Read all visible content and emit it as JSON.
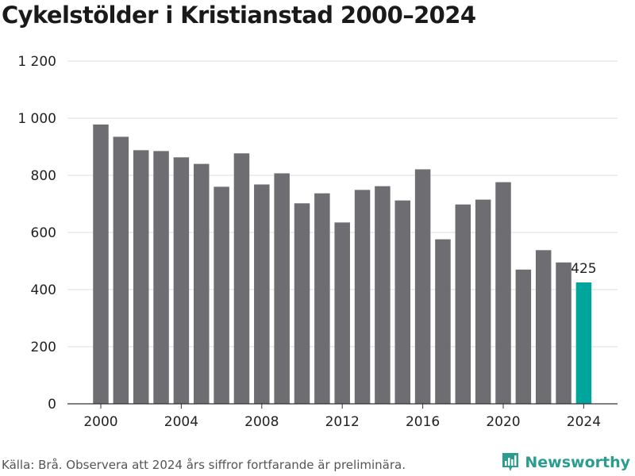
{
  "title": "Cykelstölder i Kristianstad 2000–2024",
  "source": "Källa: Brå. Observera att 2024 års siffror fortfarande är preliminära.",
  "logo": {
    "text": "Newsworthy",
    "icon": "newsworthy-bar-chart-icon"
  },
  "colors": {
    "bar": "#6e6d72",
    "highlight": "#00a69c",
    "grid": "#dcdcdc",
    "axis": "#333333",
    "brand": "#2a9d8f"
  },
  "chart_data": {
    "type": "bar",
    "x": [
      2000,
      2001,
      2002,
      2003,
      2004,
      2005,
      2006,
      2007,
      2008,
      2009,
      2010,
      2011,
      2012,
      2013,
      2014,
      2015,
      2016,
      2017,
      2018,
      2019,
      2020,
      2021,
      2022,
      2023,
      2024
    ],
    "values": [
      978,
      935,
      888,
      885,
      863,
      840,
      760,
      877,
      768,
      807,
      702,
      737,
      635,
      749,
      762,
      712,
      821,
      576,
      698,
      715,
      776,
      470,
      538,
      495,
      425
    ],
    "highlight_index": 24,
    "data_labels": [
      {
        "index": 24,
        "text": "425"
      }
    ],
    "ylim": [
      0,
      1200
    ],
    "yticks": [
      0,
      200,
      400,
      600,
      800,
      1000,
      1200
    ],
    "ytick_labels": [
      "0",
      "200",
      "400",
      "600",
      "800",
      "1 000",
      "1 200"
    ],
    "xticks": [
      2000,
      2004,
      2008,
      2012,
      2016,
      2020,
      2024
    ],
    "xtick_labels": [
      "2000",
      "2004",
      "2008",
      "2012",
      "2016",
      "2020",
      "2024"
    ],
    "grid": true,
    "xlabel": "",
    "ylabel": ""
  }
}
